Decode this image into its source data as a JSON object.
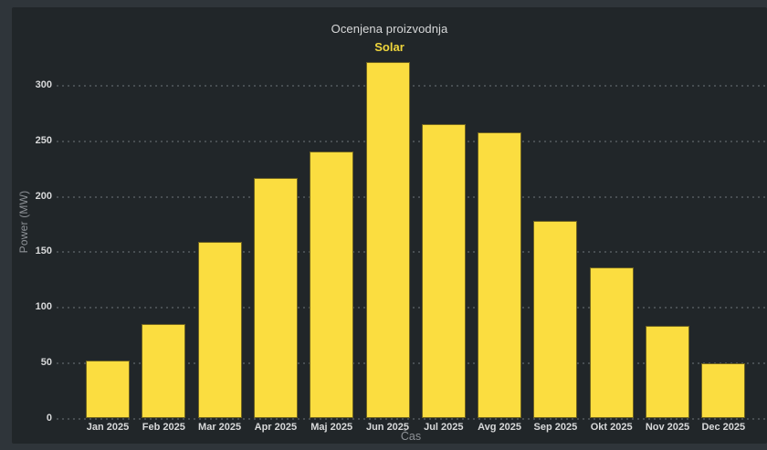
{
  "panel": {
    "title": "Ocenjena proizvodnja",
    "legend": {
      "series_label": "Solar"
    }
  },
  "chart_data": {
    "type": "bar",
    "title": "Ocenjena proizvodnja",
    "series_name": "Solar",
    "categories": [
      "Jan 2025",
      "Feb 2025",
      "Mar 2025",
      "Apr 2025",
      "Maj 2025",
      "Jun 2025",
      "Jul 2025",
      "Avg 2025",
      "Sep 2025",
      "Okt 2025",
      "Nov 2025",
      "Dec 2025"
    ],
    "values": [
      52,
      85,
      159,
      217,
      241,
      322,
      266,
      258,
      178,
      136,
      84,
      50
    ],
    "xlabel": "Čas",
    "ylabel": "Power (MW)",
    "ylim": [
      0,
      328
    ],
    "yticks": [
      0,
      50,
      100,
      150,
      200,
      250,
      300
    ],
    "grid": "horizontal-dotted",
    "legend_position": "top-center"
  },
  "colors": {
    "outer_background": "#2F353A",
    "panel_background": "#212629",
    "bar_fill": "#FBDD40",
    "bar_border": "#6E6220",
    "title_text": "#D8D9DA",
    "legend_text": "#EFD53C",
    "tick_text": "#D8D9DA",
    "axis_label_text": "#8E9297",
    "gridline": "rgba(210, 220, 230, 0.22)"
  }
}
